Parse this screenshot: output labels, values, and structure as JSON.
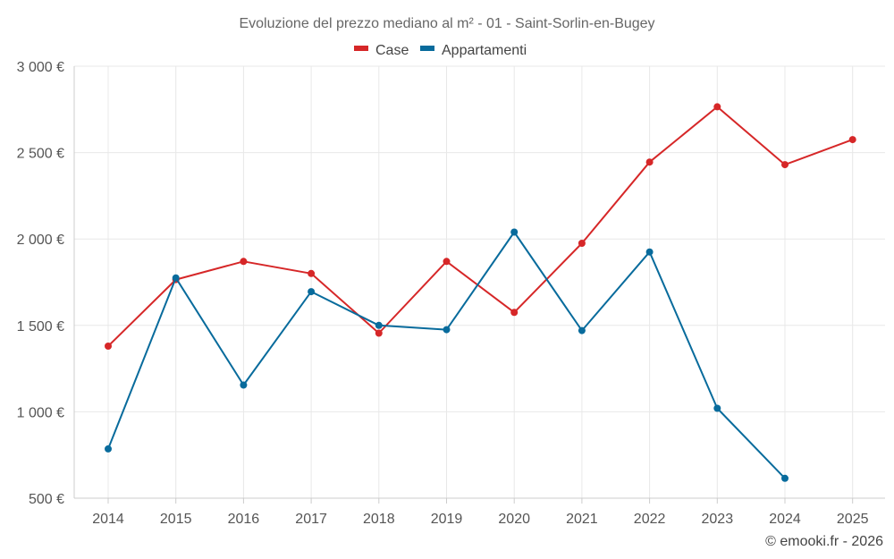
{
  "chart_data": {
    "type": "line",
    "title": "Evoluzione del prezzo mediano al m² - 01 - Saint-Sorlin-en-Bugey",
    "xlabel": "",
    "ylabel": "",
    "categories": [
      "2014",
      "2015",
      "2016",
      "2017",
      "2018",
      "2019",
      "2020",
      "2021",
      "2022",
      "2023",
      "2024",
      "2025"
    ],
    "ylim": [
      500,
      3000
    ],
    "yticks": [
      500,
      1000,
      1500,
      2000,
      2500,
      3000
    ],
    "ytick_labels": [
      "500 €",
      "1 000 €",
      "1 500 €",
      "2 000 €",
      "2 500 €",
      "3 000 €"
    ],
    "grid": true,
    "legend_position": "top-center",
    "series": [
      {
        "name": "Case",
        "color": "#d62728",
        "values": [
          1380,
          1765,
          1870,
          1800,
          1455,
          1870,
          1575,
          1975,
          2445,
          2765,
          2430,
          2575
        ]
      },
      {
        "name": "Appartamenti",
        "color": "#086b9c",
        "values": [
          785,
          1775,
          1155,
          1695,
          1500,
          1475,
          2040,
          1470,
          1925,
          1020,
          615,
          null
        ]
      }
    ]
  },
  "credit": "© emooki.fr - 2026"
}
